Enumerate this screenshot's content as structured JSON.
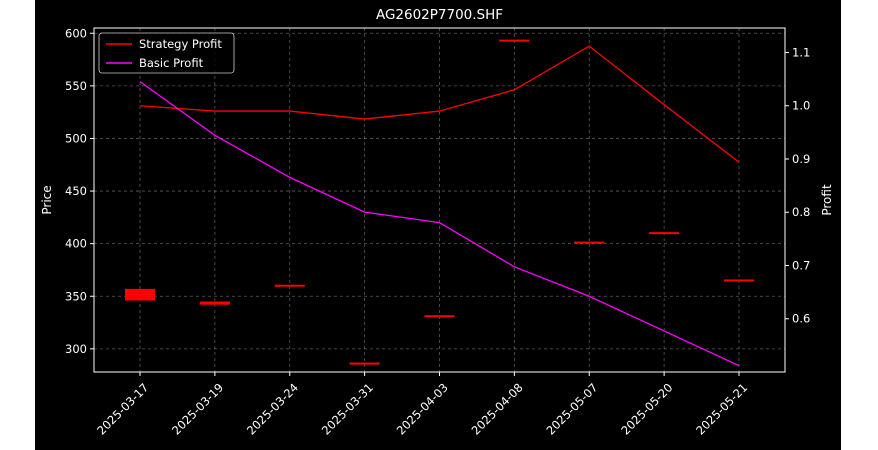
{
  "chart_data": {
    "type": "line",
    "title": "AG2602P7700.SHF",
    "xlabel": "",
    "ylabel": "Price",
    "y2label": "Profit",
    "categories": [
      "2025-03-17",
      "2025-03-19",
      "2025-03-24",
      "2025-03-31",
      "2025-04-03",
      "2025-04-08",
      "2025-05-07",
      "2025-05-20",
      "2025-05-21"
    ],
    "ylim": [
      278,
      605
    ],
    "y2lim": [
      0.5,
      1.146
    ],
    "yticks": [
      300,
      350,
      400,
      450,
      500,
      550,
      600
    ],
    "y2ticks": [
      0.6,
      0.7,
      0.8,
      0.9,
      1.0,
      1.1
    ],
    "grid": true,
    "legend_position": "top-left",
    "series": [
      {
        "name": "Strategy Profit",
        "axis": "right",
        "color": "#ff0000",
        "values": [
          1.0,
          0.99,
          0.99,
          0.975,
          0.99,
          1.03,
          1.112,
          1.002,
          0.894
        ]
      },
      {
        "name": "Basic Profit",
        "axis": "left",
        "color": "#ff00ff",
        "values": [
          554,
          503,
          463,
          430,
          420,
          378,
          350,
          317,
          284
        ]
      }
    ],
    "candles": {
      "axis": "left",
      "color": "#ff0000",
      "ranges": [
        [
          346,
          357
        ],
        [
          342,
          345
        ],
        [
          360,
          360
        ],
        [
          285,
          287
        ],
        [
          331,
          331
        ],
        [
          593,
          593
        ],
        [
          401,
          401
        ],
        [
          410,
          410
        ],
        [
          365,
          365
        ]
      ]
    }
  }
}
